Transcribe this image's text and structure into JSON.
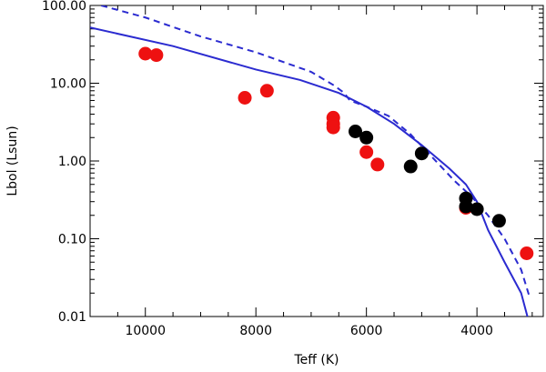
{
  "chart_data": {
    "type": "scatter",
    "title": "",
    "xlabel": "Teff (K)",
    "ylabel": "Lbol (Lsun)",
    "xlim": [
      11000,
      2800
    ],
    "ylim": [
      0.01,
      100
    ],
    "yscale": "log",
    "grid": false,
    "x_ticks": [
      {
        "value": 10000,
        "label": "10000"
      },
      {
        "value": 8000,
        "label": "8000"
      },
      {
        "value": 6000,
        "label": "6000"
      },
      {
        "value": 4000,
        "label": "4000"
      }
    ],
    "y_ticks": [
      {
        "value": 0.01,
        "label": "0.01"
      },
      {
        "value": 0.1,
        "label": "0.10"
      },
      {
        "value": 1,
        "label": "1.00"
      },
      {
        "value": 10,
        "label": "10.00"
      },
      {
        "value": 100,
        "label": "100.00"
      }
    ],
    "series": [
      {
        "kind": "line",
        "style": "solid",
        "color": "#2b2bd0",
        "x": [
          11000,
          9500,
          8000,
          7200,
          6500,
          6000,
          5500,
          5000,
          4500,
          4200,
          4000,
          3800,
          3500,
          3200,
          3050
        ],
        "y": [
          52,
          30,
          15,
          11,
          7.5,
          5.0,
          3.0,
          1.6,
          0.8,
          0.5,
          0.3,
          0.13,
          0.05,
          0.02,
          0.008
        ]
      },
      {
        "kind": "line",
        "style": "dashed",
        "color": "#2b2bd0",
        "x": [
          10800,
          10000,
          9000,
          8000,
          7000,
          6600,
          6400,
          6300,
          6000,
          5600,
          5200,
          4800,
          4400,
          4100,
          3800,
          3500,
          3200,
          3050
        ],
        "y": [
          100,
          70,
          40,
          25,
          14,
          9.5,
          7.5,
          6.0,
          5.0,
          3.8,
          2.2,
          1.1,
          0.55,
          0.35,
          0.2,
          0.1,
          0.04,
          0.018
        ]
      },
      {
        "kind": "points",
        "color": "#ee1111",
        "x": [
          10000,
          9800,
          8200,
          7800,
          6600,
          6600,
          6600,
          6000,
          5800,
          4200,
          3100
        ],
        "y": [
          24,
          23,
          6.5,
          8.0,
          3.6,
          3.0,
          2.7,
          1.3,
          0.9,
          0.25,
          0.065
        ]
      },
      {
        "kind": "points",
        "color": "#000000",
        "x": [
          6200,
          6000,
          5200,
          5000,
          4200,
          4200,
          4000,
          3600
        ],
        "y": [
          2.4,
          2.0,
          0.85,
          1.25,
          0.33,
          0.26,
          0.24,
          0.17
        ]
      }
    ]
  }
}
